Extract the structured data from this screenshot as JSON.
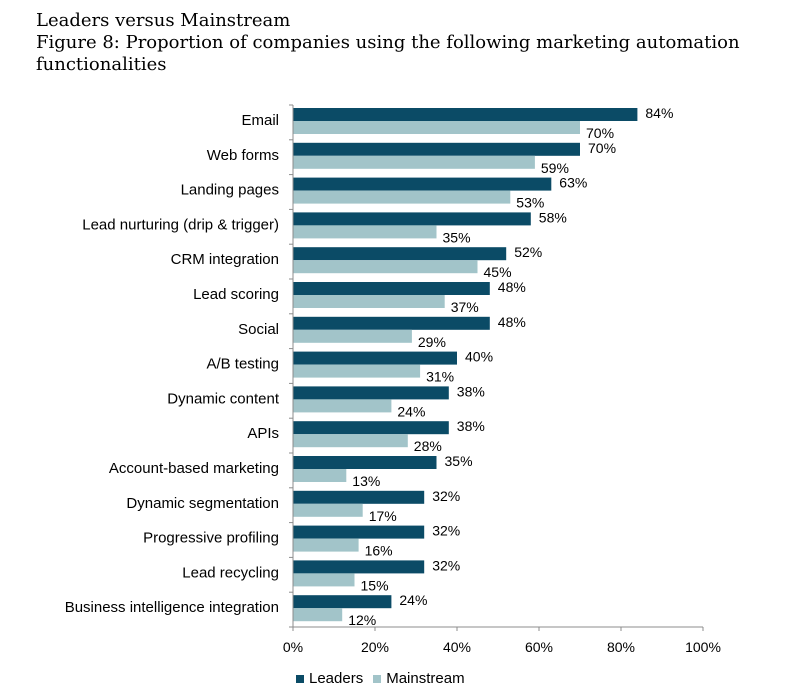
{
  "header": {
    "title": "Leaders versus Mainstream",
    "subtitle_line1": "Figure 8: Proportion of companies using the following marketing automation",
    "subtitle_line2": "functionalities"
  },
  "legend": {
    "leaders": "Leaders",
    "mainstream": "Mainstream"
  },
  "colors": {
    "leaders": "#0b4b66",
    "mainstream": "#a2c4c9"
  },
  "chart_data": {
    "type": "bar",
    "orientation": "horizontal",
    "categories": [
      "Email",
      "Web forms",
      "Landing pages",
      "Lead nurturing (drip & trigger)",
      "CRM integration",
      "Lead scoring",
      "Social",
      "A/B testing",
      "Dynamic content",
      "APIs",
      "Account-based marketing",
      "Dynamic segmentation",
      "Progressive profiling",
      "Lead recycling",
      "Business intelligence integration"
    ],
    "series": [
      {
        "name": "Leaders",
        "values": [
          84,
          70,
          63,
          58,
          52,
          48,
          48,
          40,
          38,
          38,
          35,
          32,
          32,
          32,
          24
        ]
      },
      {
        "name": "Mainstream",
        "values": [
          70,
          59,
          53,
          35,
          45,
          37,
          29,
          31,
          24,
          28,
          13,
          17,
          16,
          15,
          12
        ]
      }
    ],
    "xlim": [
      0,
      100
    ],
    "xticks": [
      "0%",
      "20%",
      "40%",
      "60%",
      "80%",
      "100%"
    ],
    "value_suffix": "%",
    "grid": false,
    "legend_position": "bottom"
  }
}
